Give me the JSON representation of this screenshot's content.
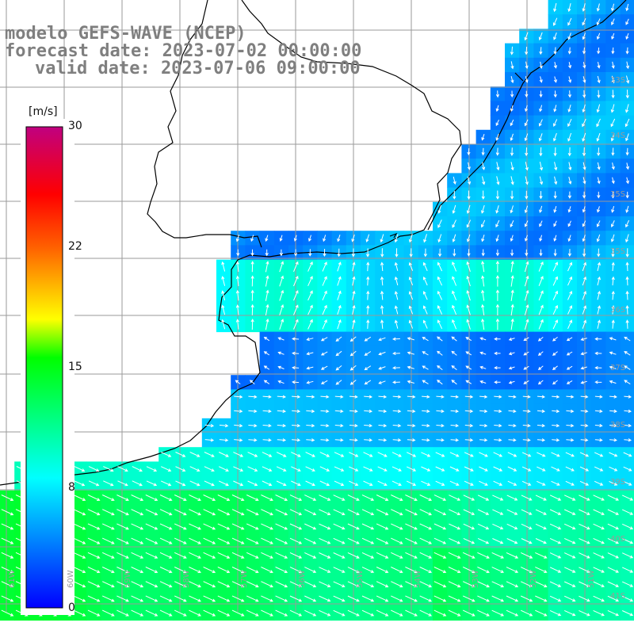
{
  "title": {
    "line1": "modelo GEFS-WAVE (NCEP)",
    "line2": "forecast date: 2023-07-02 00:00:00",
    "line3": "valid date: 2023-07-06 09:00:00"
  },
  "colorbar": {
    "unit": "[m/s]",
    "ticks": [
      "30",
      "22",
      "15",
      "8",
      "0"
    ],
    "tick_values": [
      30,
      22,
      15,
      8,
      0
    ],
    "min": 0,
    "max": 30,
    "colors": [
      "#0000ff",
      "#00a0ff",
      "#00ffff",
      "#00ff00",
      "#ffff00",
      "#ff8000",
      "#ff0000",
      "#c00080"
    ]
  },
  "axes": {
    "lat_labels": [
      "33S",
      "34S",
      "35S",
      "36S",
      "37S",
      "38S",
      "39S",
      "40S",
      "41S"
    ],
    "lon_labels": [
      "61W",
      "60W",
      "59W",
      "58W",
      "57W",
      "56W",
      "55W",
      "54W",
      "53W",
      "52W",
      "51W"
    ]
  },
  "map_style": {
    "land_color": "#ffffff",
    "coast_color": "#000000",
    "grid_color": "#9a9a9a",
    "arrow_color": "#ffffff"
  }
}
